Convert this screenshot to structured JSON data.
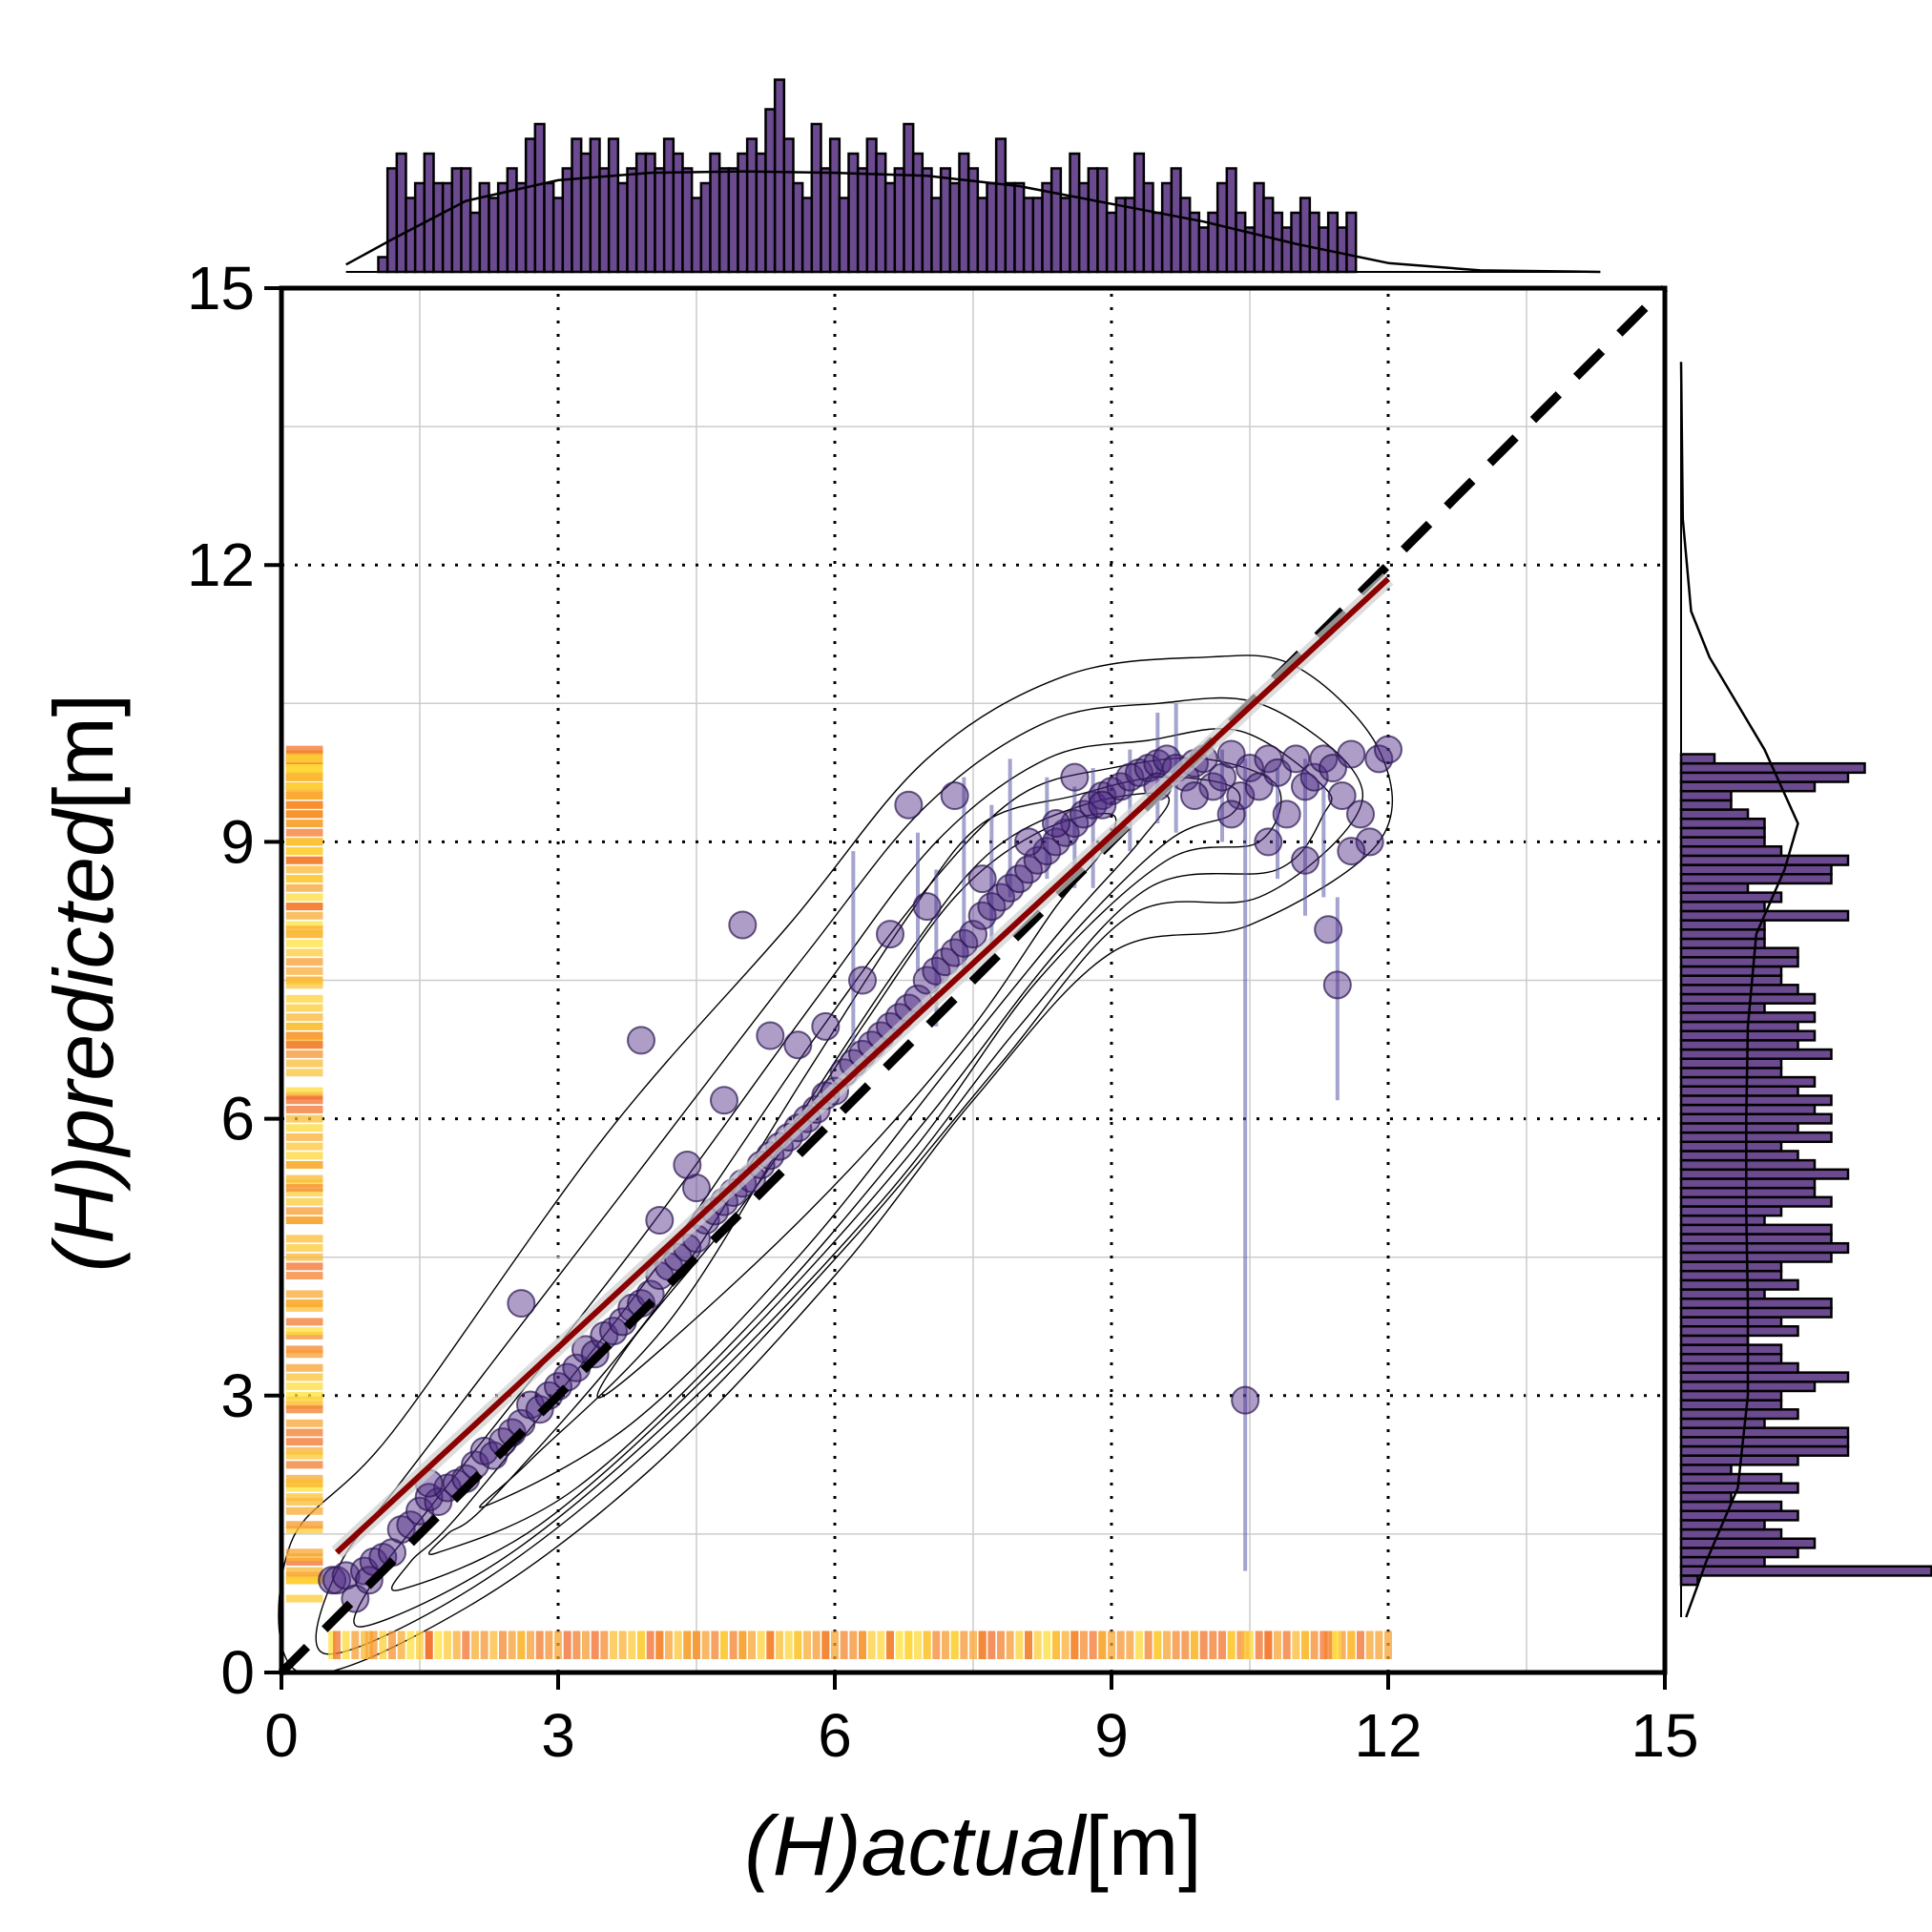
{
  "chart_data": {
    "type": "scatter",
    "xlabel": "(H)actual[m]",
    "ylabel": "(H)predicted[m]",
    "xlabel_parts": {
      "italic": [
        "(",
        "H",
        ")actual"
      ],
      "unit": "[m]"
    },
    "ylabel_parts": {
      "italic": [
        "(",
        "H",
        ")predicted"
      ],
      "unit": "[m]"
    },
    "xlim": [
      0,
      15
    ],
    "ylim": [
      0,
      15
    ],
    "xticks": [
      "0",
      "3",
      "6",
      "9",
      "12",
      "15"
    ],
    "yticks": [
      "0",
      "3",
      "6",
      "9",
      "12",
      "15"
    ],
    "grid": true,
    "major_dotted_grid": [
      3,
      6,
      9,
      12
    ],
    "identity_line": {
      "x": [
        0,
        15
      ],
      "y": [
        0,
        15
      ],
      "style": "dashed",
      "color": "#000000"
    },
    "regression_line": {
      "x": [
        0.6,
        12.0
      ],
      "y": [
        1.3,
        11.85
      ],
      "color": "#8b0000"
    },
    "colors": {
      "points": "#4b2882",
      "hist": "#6b4a8f",
      "regression": "#8b0000",
      "band": "#5a5aa8",
      "rug_low": "#ffe23a",
      "rug_high": "#f06a2a"
    },
    "series": [
      {
        "x": [
          0.55,
          0.6,
          0.7,
          0.8,
          0.9,
          0.95,
          1.0,
          1.1,
          1.2,
          1.3,
          1.4,
          1.5,
          1.6,
          1.7,
          1.8,
          1.9,
          2.0,
          2.1,
          2.2,
          2.3,
          2.4,
          2.5,
          2.6,
          2.7,
          2.8,
          2.9,
          3.0,
          3.1,
          3.2,
          3.3,
          3.4,
          3.5,
          3.6,
          3.7,
          3.8,
          3.9,
          4.0,
          4.1,
          4.2,
          4.3,
          4.4,
          4.5,
          4.6,
          4.7,
          4.8,
          4.9,
          5.0,
          5.1,
          5.2,
          5.3,
          5.4,
          5.5,
          5.6,
          5.7,
          5.8,
          5.9,
          6.0,
          6.1,
          6.2,
          6.3,
          6.4,
          6.5,
          6.6,
          6.7,
          6.8,
          6.9,
          7.0,
          7.1,
          7.2,
          7.3,
          7.4,
          7.5,
          7.6,
          7.7,
          7.8,
          7.9,
          8.0,
          8.1,
          8.2,
          8.3,
          8.4,
          8.5,
          8.6,
          8.7,
          8.8,
          8.9,
          9.0,
          9.1,
          9.2,
          9.3,
          9.4,
          9.5,
          9.6,
          9.7,
          9.8,
          9.9,
          10.0,
          10.1,
          10.2,
          10.3,
          10.4,
          10.5,
          10.6,
          10.7,
          10.8,
          10.9,
          11.0,
          11.1,
          11.2,
          11.3,
          11.4,
          11.5,
          11.6,
          11.7,
          11.8,
          11.9,
          12.0,
          3.9,
          5.0,
          1.6,
          2.6,
          4.5,
          5.3,
          6.8,
          7.3,
          8.6,
          10.45,
          11.35,
          11.45,
          4.1,
          4.4,
          4.8,
          5.6,
          5.9,
          6.3,
          6.6,
          7.0,
          7.6,
          8.1,
          8.4,
          8.9,
          9.5,
          9.9,
          10.3,
          10.7,
          11.1,
          11.6
        ],
        "y": [
          1.0,
          1.0,
          1.05,
          0.8,
          1.1,
          1.0,
          1.2,
          1.25,
          1.3,
          1.55,
          1.6,
          1.75,
          1.9,
          1.85,
          2.0,
          2.05,
          2.1,
          2.25,
          2.4,
          2.35,
          2.5,
          2.6,
          2.7,
          2.9,
          2.85,
          3.0,
          3.1,
          3.2,
          3.3,
          3.5,
          3.45,
          3.65,
          3.7,
          3.8,
          3.95,
          4.0,
          4.1,
          4.3,
          4.4,
          4.5,
          4.6,
          4.7,
          4.9,
          5.0,
          5.1,
          5.2,
          5.3,
          5.35,
          5.5,
          5.6,
          5.7,
          5.8,
          5.9,
          6.0,
          6.1,
          6.25,
          6.3,
          6.5,
          6.6,
          6.7,
          6.8,
          6.9,
          7.0,
          7.1,
          7.2,
          7.3,
          7.5,
          7.6,
          7.7,
          7.8,
          7.9,
          8.0,
          8.2,
          8.3,
          8.4,
          8.5,
          8.6,
          8.7,
          8.8,
          8.9,
          9.0,
          9.1,
          9.2,
          9.3,
          9.4,
          9.5,
          9.55,
          9.6,
          9.7,
          9.75,
          9.8,
          9.85,
          9.9,
          9.8,
          9.7,
          9.85,
          9.9,
          9.6,
          9.7,
          9.95,
          9.5,
          9.8,
          9.6,
          9.9,
          9.75,
          9.3,
          9.9,
          9.6,
          9.7,
          9.9,
          9.8,
          9.5,
          9.95,
          9.3,
          9.0,
          9.9,
          10.0,
          6.85,
          8.1,
          2.05,
          4.0,
          5.25,
          6.9,
          9.4,
          9.5,
          9.7,
          2.95,
          8.05,
          7.45,
          4.9,
          5.5,
          6.2,
          6.8,
          7.0,
          7.5,
          8.0,
          8.3,
          8.6,
          9.0,
          9.2,
          9.4,
          9.6,
          9.5,
          9.3,
          9.0,
          8.8,
          8.9
        ]
      }
    ],
    "top_histogram": {
      "bins": [
        1.1,
        1.2,
        1.3,
        1.4,
        1.5,
        1.6,
        1.7,
        1.8,
        1.9,
        2.0,
        2.1,
        2.2,
        2.3,
        2.4,
        2.5,
        2.6,
        2.7,
        2.8,
        2.9,
        3.0,
        3.1,
        3.2,
        3.3,
        3.4,
        3.5,
        3.6,
        3.7,
        3.8,
        3.9,
        4.0,
        4.1,
        4.2,
        4.3,
        4.4,
        4.5,
        4.6,
        4.7,
        4.8,
        4.9,
        5.0,
        5.1,
        5.2,
        5.3,
        5.4,
        5.5,
        5.6,
        5.7,
        5.8,
        5.9,
        6.0,
        6.1,
        6.2,
        6.3,
        6.4,
        6.5,
        6.6,
        6.7,
        6.8,
        6.9,
        7.0,
        7.1,
        7.2,
        7.3,
        7.4,
        7.5,
        7.6,
        7.7,
        7.8,
        7.9,
        8.0,
        8.1,
        8.2,
        8.3,
        8.4,
        8.5,
        8.6,
        8.7,
        8.8,
        8.9,
        9.0,
        9.1,
        9.2,
        9.3,
        9.4,
        9.5,
        9.6,
        9.7,
        9.8,
        9.9,
        10.0,
        10.1,
        10.2,
        10.3,
        10.4,
        10.5,
        10.6,
        10.7,
        10.8,
        10.9,
        11.0,
        11.1,
        11.2,
        11.3,
        11.4,
        11.5,
        11.6
      ],
      "counts": [
        1,
        7,
        8,
        5,
        6,
        8,
        6,
        6,
        7,
        7,
        4,
        6,
        5,
        6,
        7,
        6,
        9,
        10,
        6,
        5,
        7,
        9,
        8,
        9,
        7,
        9,
        6,
        7,
        8,
        8,
        7,
        9,
        8,
        7,
        5,
        6,
        8,
        7,
        7,
        8,
        9,
        8,
        11,
        13,
        9,
        6,
        5,
        10,
        7,
        9,
        5,
        8,
        7,
        9,
        8,
        6,
        7,
        10,
        8,
        7,
        5,
        7,
        6,
        8,
        7,
        5,
        6,
        9,
        6,
        6,
        5,
        5,
        6,
        7,
        5,
        8,
        6,
        7,
        7,
        4,
        5,
        5,
        8,
        6,
        4,
        6,
        7,
        5,
        4,
        3,
        4,
        6,
        7,
        4,
        3,
        6,
        5,
        4,
        3,
        4,
        5,
        4,
        3,
        4,
        3,
        4
      ]
    },
    "right_histogram": {
      "bins": [
        1.0,
        1.1,
        1.2,
        1.3,
        1.4,
        1.5,
        1.6,
        1.7,
        1.8,
        1.9,
        2.0,
        2.1,
        2.2,
        2.3,
        2.4,
        2.5,
        2.6,
        2.7,
        2.8,
        2.9,
        3.0,
        3.1,
        3.2,
        3.3,
        3.4,
        3.5,
        3.6,
        3.7,
        3.8,
        3.9,
        4.0,
        4.1,
        4.2,
        4.3,
        4.4,
        4.5,
        4.6,
        4.7,
        4.8,
        4.9,
        5.0,
        5.1,
        5.2,
        5.3,
        5.4,
        5.5,
        5.6,
        5.7,
        5.8,
        5.9,
        6.0,
        6.1,
        6.2,
        6.3,
        6.4,
        6.5,
        6.6,
        6.7,
        6.8,
        6.9,
        7.0,
        7.1,
        7.2,
        7.3,
        7.4,
        7.5,
        7.6,
        7.7,
        7.8,
        7.9,
        8.0,
        8.1,
        8.2,
        8.3,
        8.4,
        8.5,
        8.6,
        8.7,
        8.8,
        8.9,
        9.0,
        9.1,
        9.2,
        9.3,
        9.4,
        9.5,
        9.6,
        9.7,
        9.8,
        9.9
      ],
      "counts": [
        1,
        15,
        5,
        7,
        8,
        6,
        5,
        7,
        6,
        3,
        7,
        6,
        3,
        7,
        10,
        10,
        10,
        5,
        7,
        6,
        6,
        8,
        10,
        7,
        6,
        6,
        4,
        7,
        6,
        9,
        9,
        5,
        7,
        6,
        6,
        9,
        10,
        9,
        9,
        5,
        6,
        9,
        8,
        8,
        10,
        8,
        7,
        6,
        9,
        7,
        9,
        8,
        9,
        7,
        8,
        6,
        6,
        9,
        7,
        8,
        7,
        8,
        5,
        8,
        7,
        6,
        6,
        7,
        7,
        5,
        5,
        5,
        10,
        5,
        6,
        4,
        9,
        9,
        10,
        6,
        5,
        5,
        5,
        4,
        3,
        3,
        8,
        10,
        11,
        2
      ]
    }
  }
}
